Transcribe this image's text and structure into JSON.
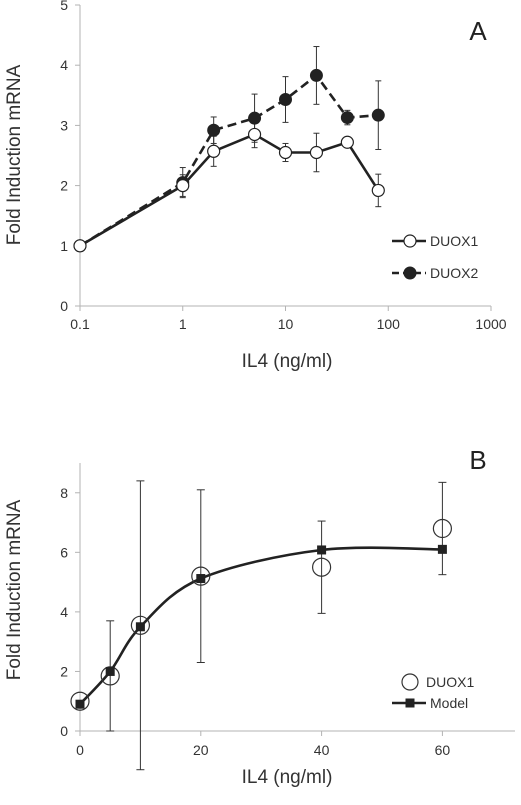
{
  "chart_data": [
    {
      "panel": "A",
      "type": "line",
      "xscale": "log",
      "xlabel": "IL4 (ng/ml)",
      "ylabel": "Fold Induction mRNA",
      "xlim": [
        0.1,
        1000
      ],
      "ylim": [
        0,
        5
      ],
      "xticks": [
        "0.1",
        "1",
        "10",
        "100",
        "1000"
      ],
      "yticks": [
        "0",
        "1",
        "2",
        "3",
        "4",
        "5"
      ],
      "grid": false,
      "legend_position": "middle-right",
      "series": [
        {
          "name": "DUOX1",
          "line": "solid",
          "marker": "open-circle",
          "x": [
            0.1,
            1,
            2,
            5,
            10,
            20,
            40,
            80
          ],
          "y": [
            1.0,
            2.0,
            2.57,
            2.85,
            2.55,
            2.55,
            2.72,
            1.92
          ],
          "err": [
            0.0,
            0.18,
            0.25,
            0.22,
            0.15,
            0.32,
            0.05,
            0.27
          ]
        },
        {
          "name": "DUOX2",
          "line": "dashed",
          "marker": "filled-circle",
          "x": [
            0.1,
            1,
            2,
            5,
            10,
            20,
            40,
            80
          ],
          "y": [
            1.0,
            2.05,
            2.92,
            3.12,
            3.43,
            3.83,
            3.13,
            3.17
          ],
          "err": [
            0.0,
            0.25,
            0.22,
            0.4,
            0.38,
            0.48,
            0.12,
            0.57
          ]
        }
      ]
    },
    {
      "panel": "B",
      "type": "scatter",
      "xlabel": "IL4 (ng/ml)",
      "ylabel": "Fold Induction mRNA",
      "xlim": [
        0,
        75
      ],
      "ylim": [
        0,
        9
      ],
      "xticks": [
        "0",
        "20",
        "40",
        "60"
      ],
      "yticks": [
        "0",
        "2",
        "4",
        "6",
        "8"
      ],
      "grid": false,
      "legend_position": "bottom-right",
      "series": [
        {
          "name": "DUOX1",
          "marker": "open-circle",
          "x": [
            0,
            5,
            10,
            20,
            40,
            60
          ],
          "y": [
            1.0,
            1.85,
            3.55,
            5.2,
            5.5,
            6.8
          ],
          "err": [
            0.0,
            1.85,
            4.85,
            2.9,
            1.55,
            1.55
          ]
        },
        {
          "name": "Model",
          "marker": "filled-square",
          "line": "smooth",
          "x": [
            0,
            5,
            10,
            20,
            40,
            60
          ],
          "y": [
            0.9,
            2.0,
            3.5,
            5.12,
            6.08,
            6.1
          ]
        }
      ]
    }
  ]
}
